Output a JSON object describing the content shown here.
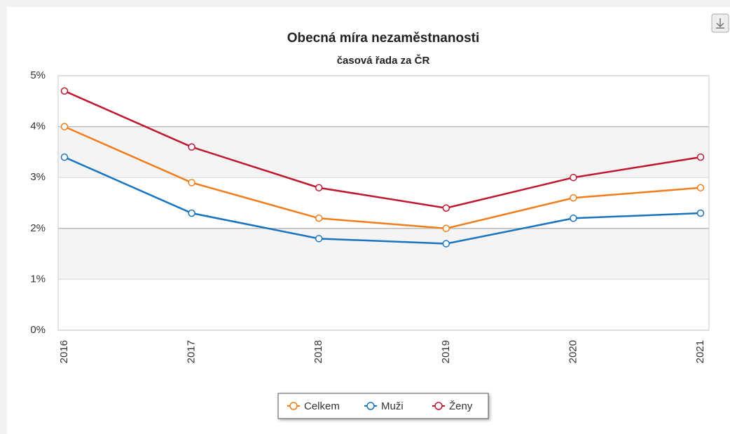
{
  "chart_data": {
    "type": "line",
    "title": "Obecná míra nezaměstnanosti",
    "subtitle": "časová řada za ČR",
    "categories": [
      "2016",
      "2017",
      "2018",
      "2019",
      "2020",
      "2021"
    ],
    "series": [
      {
        "name": "Celkem",
        "color": "#f07c1b",
        "values": [
          4.0,
          2.9,
          2.2,
          2.0,
          2.6,
          2.8
        ]
      },
      {
        "name": "Muži",
        "color": "#1874c0",
        "values": [
          3.4,
          2.3,
          1.8,
          1.7,
          2.2,
          2.3
        ]
      },
      {
        "name": "Ženy",
        "color": "#c0152f",
        "values": [
          4.7,
          3.6,
          2.8,
          2.4,
          3.0,
          3.4
        ]
      }
    ],
    "ylim": [
      0,
      5
    ],
    "yticks": [
      {
        "value": 0,
        "label": "0%"
      },
      {
        "value": 1,
        "label": "1%"
      },
      {
        "value": 2,
        "label": "2%"
      },
      {
        "value": 3,
        "label": "3%"
      },
      {
        "value": 4,
        "label": "4%"
      },
      {
        "value": 5,
        "label": "5%"
      }
    ],
    "grid": true
  }
}
